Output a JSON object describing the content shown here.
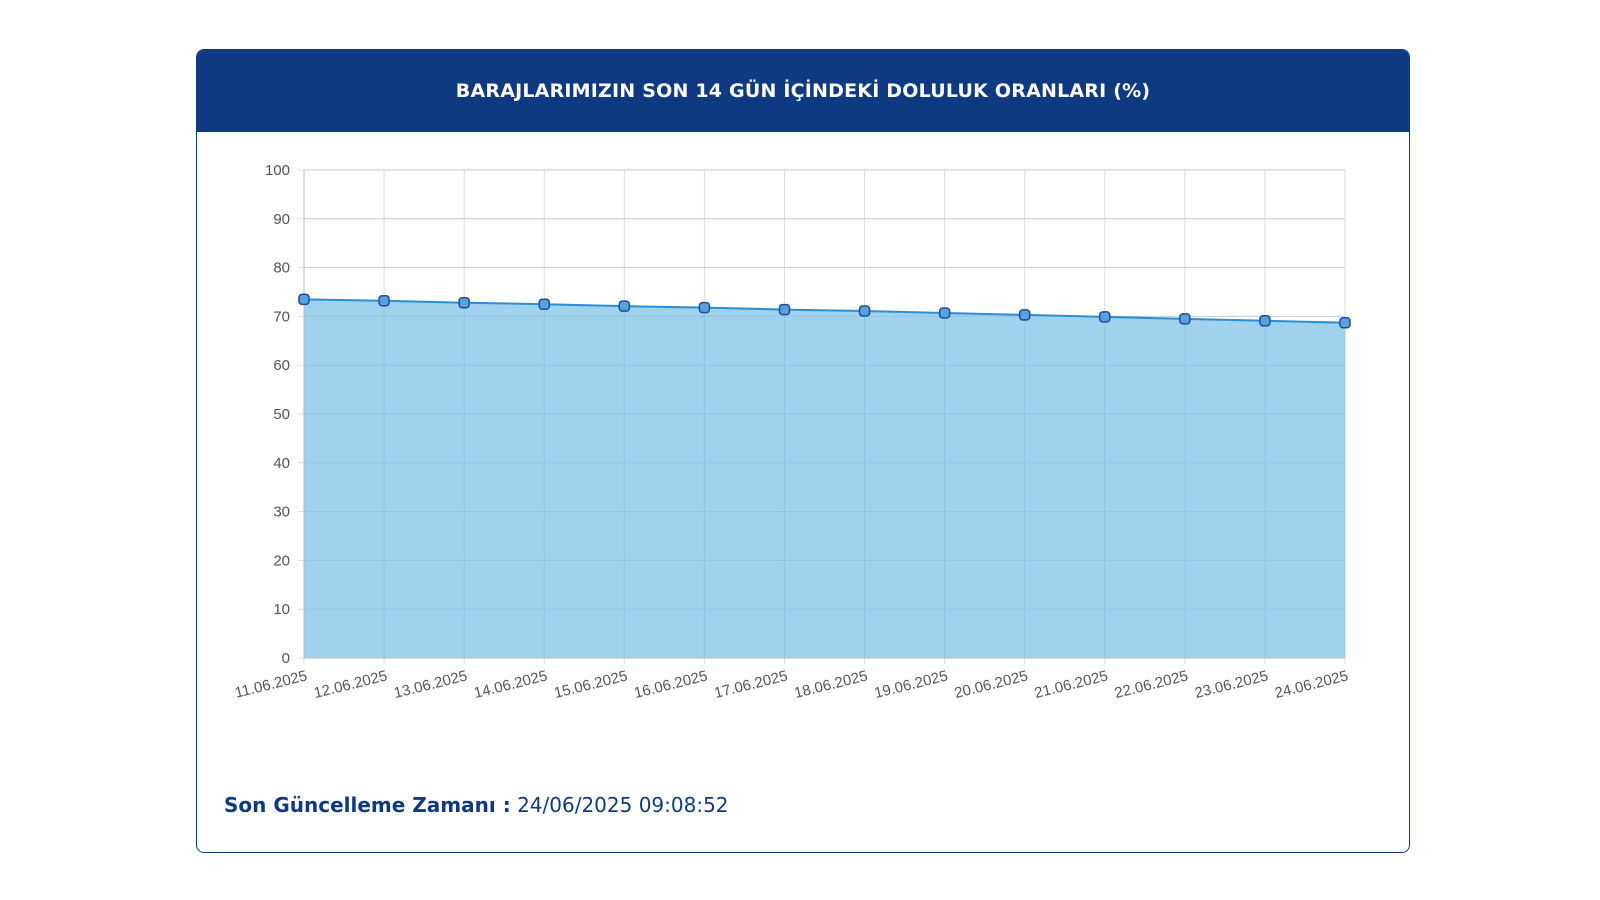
{
  "header": {
    "title": "BARAJLARIMIZIN SON 14 GÜN İÇİNDEKİ DOLULUK ORANLARI (%)"
  },
  "footer": {
    "label": "Son Güncelleme Zamanı :",
    "value": "24/06/2025 09:08:52"
  },
  "colors": {
    "header_bg": "#0f3a82",
    "area_fill": "#9bcfec",
    "line": "#2a8fd0",
    "point_fill": "#5aa0dc",
    "point_stroke": "#1d4e9a",
    "grid": "#dddddd",
    "tick_text": "#555555"
  },
  "chart_data": {
    "type": "area",
    "title": "",
    "xlabel": "",
    "ylabel": "",
    "categories": [
      "11.06.2025",
      "12.06.2025",
      "13.06.2025",
      "14.06.2025",
      "15.06.2025",
      "16.06.2025",
      "17.06.2025",
      "18.06.2025",
      "19.06.2025",
      "20.06.2025",
      "21.06.2025",
      "22.06.2025",
      "23.06.2025",
      "24.06.2025"
    ],
    "values": [
      73.5,
      73.2,
      72.8,
      72.5,
      72.1,
      71.8,
      71.4,
      71.1,
      70.7,
      70.3,
      69.9,
      69.5,
      69.1,
      68.7
    ],
    "ylim": [
      0,
      100
    ],
    "yticks": [
      0,
      10,
      20,
      30,
      40,
      50,
      60,
      70,
      80,
      90,
      100
    ],
    "grid": true,
    "legend": "none"
  }
}
